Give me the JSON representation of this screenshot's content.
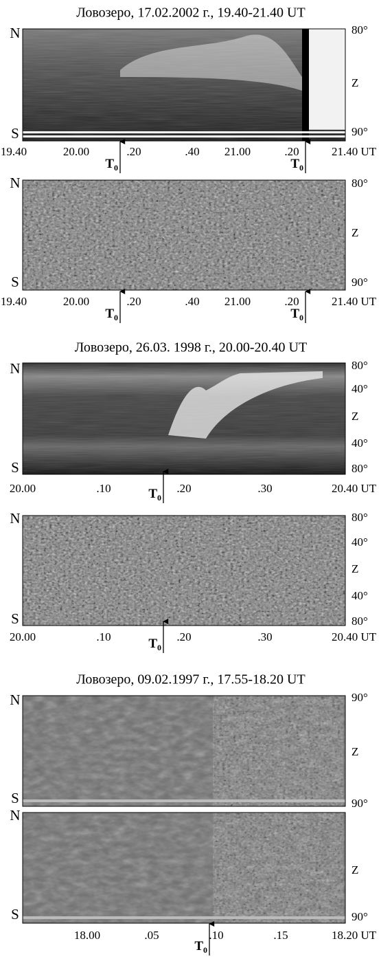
{
  "figures": [
    {
      "title": "Ловозеро, 17.02.2002 г., 19.40-21.40 UT",
      "panels": [
        {
          "left_labels": [
            "N",
            "S"
          ],
          "right_labels": [
            "80°",
            "Z",
            "90°"
          ],
          "x_labels": [
            "19.40",
            "20.00",
            ".20",
            ".40",
            "21.00",
            ".20",
            "21.40 UT"
          ],
          "markers": [
            {
              "main": "T",
              "sub": "0"
            },
            {
              "main": "T",
              "sub": "0"
            }
          ]
        },
        {
          "left_labels": [
            "N",
            "S"
          ],
          "right_labels": [
            "80°",
            "Z",
            "90°"
          ],
          "x_labels": [
            "19.40",
            "20.00",
            ".20",
            ".40",
            "21.00",
            ".20",
            "21.40 UT"
          ],
          "markers": [
            {
              "main": "T",
              "sub": "0"
            },
            {
              "main": "T",
              "sub": "0"
            }
          ]
        }
      ]
    },
    {
      "title": "Ловозеро, 26.03. 1998 г., 20.00-20.40  UT",
      "panels": [
        {
          "left_labels": [
            "N",
            "S"
          ],
          "right_labels": [
            "80°",
            "40°",
            "Z",
            "40°",
            "80°"
          ],
          "x_labels": [
            "20.00",
            ".10",
            ".20",
            ".30",
            "20.40 UT"
          ],
          "markers": [
            {
              "main": "T",
              "sub": "0"
            }
          ]
        },
        {
          "left_labels": [
            "N",
            "S"
          ],
          "right_labels": [
            "80°",
            "40°",
            "Z",
            "40°",
            "80°"
          ],
          "x_labels": [
            "20.00",
            ".10",
            ".20",
            ".30",
            "20.40 UT"
          ],
          "markers": [
            {
              "main": "T",
              "sub": "0"
            }
          ]
        }
      ]
    },
    {
      "title": "Ловозеро, 09.02.1997 г., 17.55-18.20 UT",
      "panels": [
        {
          "left_labels": [
            "N",
            "S"
          ],
          "right_labels": [
            "90°",
            "Z",
            "90°"
          ]
        },
        {
          "left_labels": [
            "N",
            "S"
          ],
          "right_labels": [
            "Z",
            "90°"
          ],
          "x_labels": [
            "18.00",
            ".05",
            ".10",
            ".15",
            "18.20 UT"
          ],
          "markers": [
            {
              "main": "T",
              "sub": "0"
            }
          ]
        }
      ]
    }
  ]
}
